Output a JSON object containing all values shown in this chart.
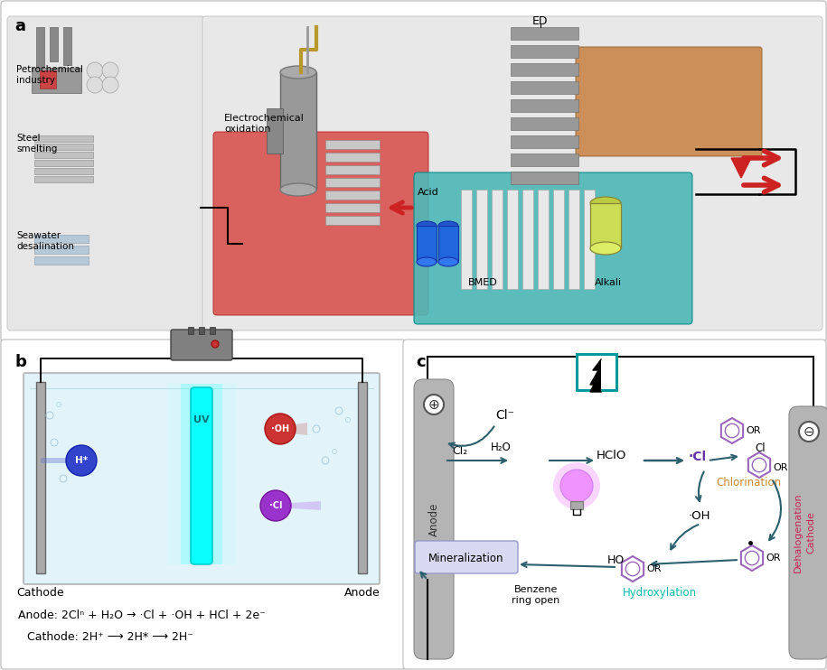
{
  "bg_color": "#f0f0f0",
  "panel_a": {
    "labels": {
      "petrochemical": "Petrochemical\nindustry",
      "steel": "Steel\nsmelting",
      "seawater": "Seawater\ndesalination",
      "elec_ox": "Electrochemical\noxidation",
      "ed": "ED",
      "acid": "Acid",
      "alkali": "Alkali",
      "bmed": "BMED"
    }
  },
  "panel_b": {
    "anode_eq": "Anode: 2Clⁿ + H₂O → ·Cl + ·OH + HCl + 2e⁻",
    "cathode_eq": "Cathode: 2H⁺ ⟶ 2H* ⟶ 2H⁻"
  },
  "panel_c": {
    "chlorination": "Chlorination",
    "hydroxylation": "Hydroxylation",
    "dehalogenation": "Dehalogenation",
    "mineralization": "Mineralization",
    "benzene_ring_open": "Benzene\nring open",
    "anode_label": "Anode",
    "cathode_label": "Cathode"
  }
}
